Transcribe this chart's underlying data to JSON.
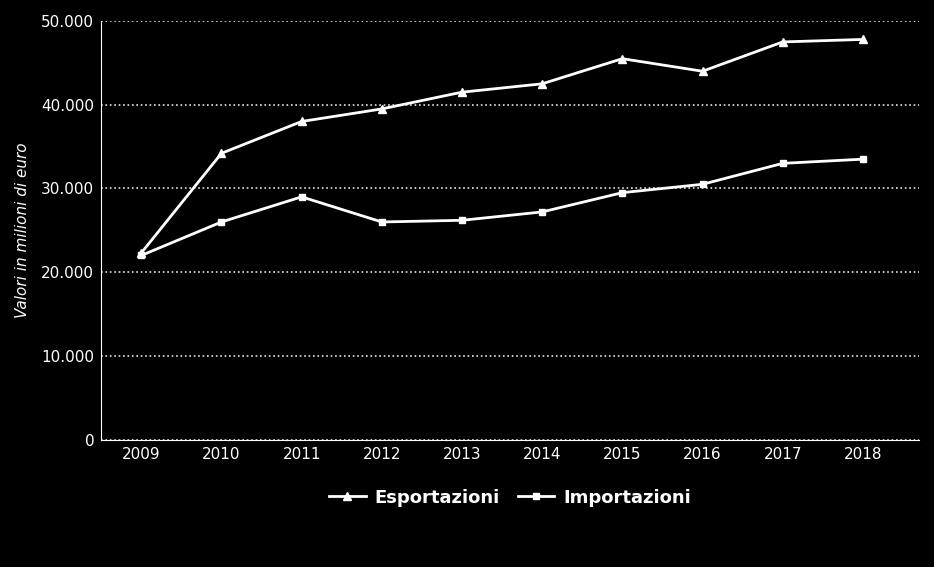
{
  "years": [
    2009,
    2010,
    2011,
    2012,
    2013,
    2014,
    2015,
    2016,
    2017,
    2018
  ],
  "esportazioni": [
    22300,
    34200,
    38000,
    39500,
    41500,
    42500,
    45500,
    44000,
    47500,
    47800
  ],
  "importazioni": [
    22000,
    26000,
    29000,
    26000,
    26200,
    27200,
    29500,
    30500,
    33000,
    33500
  ],
  "line_color": "#ffffff",
  "bg_color": "#000000",
  "ylabel": "Valori in milioni di euro",
  "ylim": [
    0,
    50000
  ],
  "yticks": [
    0,
    10000,
    20000,
    30000,
    40000,
    50000
  ],
  "legend_labels": [
    "Esportazioni",
    "Importazioni"
  ],
  "marker_size": 6,
  "line_width": 2.0,
  "grid_color": "#ffffff",
  "grid_alpha": 0.9,
  "grid_linewidth": 1.2
}
